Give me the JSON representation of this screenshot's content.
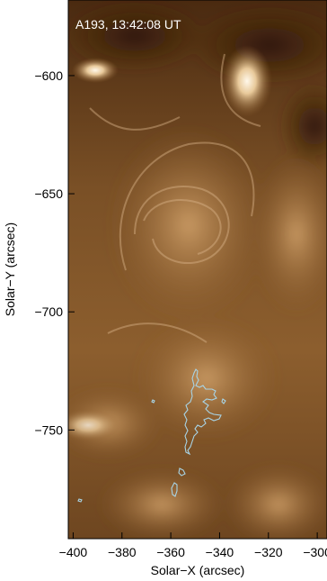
{
  "image": {
    "overlay_label": "A193, 13:42:08 UT",
    "contour_color": "#a8d4e6",
    "colormap": "sdoaia193"
  },
  "axes": {
    "xlabel": "Solar−X (arcsec)",
    "ylabel": "Solar−Y (arcsec)",
    "xlim": [
      -402,
      -296
    ],
    "ylim": [
      -796,
      -568
    ],
    "x_ticks": [
      {
        "value": -400,
        "label": "−400"
      },
      {
        "value": -380,
        "label": "−380"
      },
      {
        "value": -360,
        "label": "−360"
      },
      {
        "value": -340,
        "label": "−340"
      },
      {
        "value": -320,
        "label": "−320"
      },
      {
        "value": -300,
        "label": "−300"
      }
    ],
    "y_ticks": [
      {
        "value": -600,
        "label": "−600"
      },
      {
        "value": -650,
        "label": "−650"
      },
      {
        "value": -700,
        "label": "−700"
      },
      {
        "value": -750,
        "label": "−750"
      }
    ]
  }
}
